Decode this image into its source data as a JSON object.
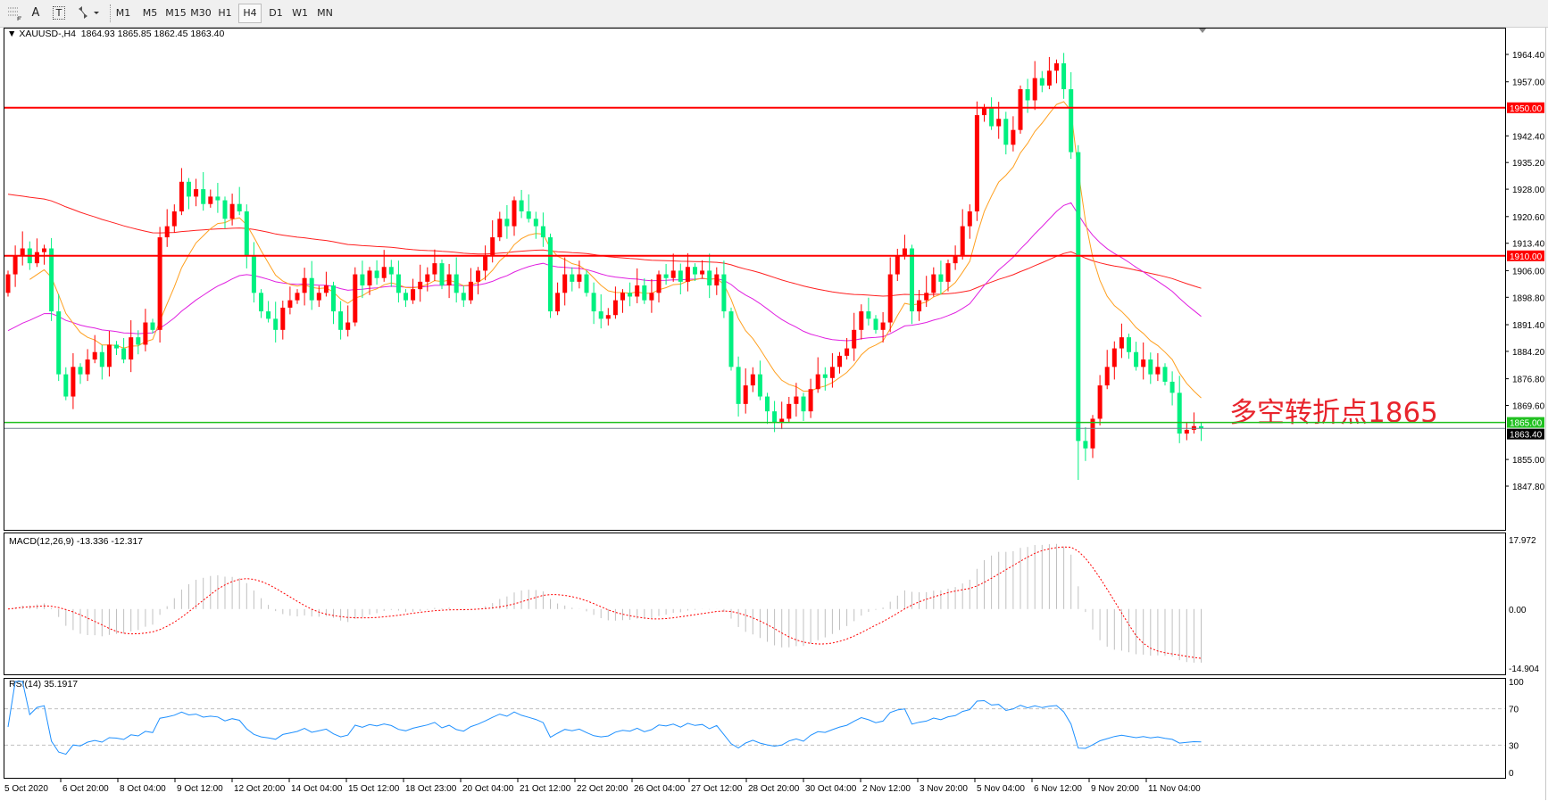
{
  "toolbar": {
    "tools": [
      {
        "name": "period-separator-icon"
      },
      {
        "name": "text-icon",
        "glyph": "A"
      },
      {
        "name": "text-label-icon",
        "glyph": "T"
      },
      {
        "name": "arrows-icon"
      }
    ],
    "timeframes": [
      "M1",
      "M5",
      "M15",
      "M30",
      "H1",
      "H4",
      "D1",
      "W1",
      "MN"
    ],
    "selected_timeframe": "H4"
  },
  "chart_header": {
    "symbol": "XAUUSD-,H4",
    "ohlc": "1864.93 1865.85 1862.45 1863.40"
  },
  "annotation": "多空转折点1865",
  "colors": {
    "bull_candle": "#ff0000",
    "bear_candle": "#00f080",
    "ma_long": "#ff2020",
    "ma_mid": "#e020e0",
    "ma_short": "#ffa020",
    "resistance_line": "#ff0000",
    "support_line": "#20c020",
    "bid_line": "#708090",
    "macd_hist": "#c0c0c0",
    "macd_signal": "#ff0000",
    "rsi": "#1e90ff"
  },
  "chart_data": [
    {
      "type": "candlestick",
      "title": "XAUUSD-,H4",
      "ylim": [
        1847.8,
        1964.4
      ],
      "y_ticks": [
        "1964.40",
        "1957.00",
        "1942.40",
        "1935.20",
        "1928.00",
        "1920.60",
        "1913.40",
        "1906.00",
        "1898.80",
        "1891.40",
        "1884.20",
        "1876.80",
        "1869.60",
        "1855.00",
        "1847.80"
      ],
      "x_ticks": [
        "5 Oct 2020",
        "6 Oct 20:00",
        "8 Oct 04:00",
        "9 Oct 12:00",
        "12 Oct 20:00",
        "14 Oct 04:00",
        "15 Oct 12:00",
        "18 Oct 23:00",
        "20 Oct 04:00",
        "21 Oct 12:00",
        "22 Oct 20:00",
        "26 Oct 04:00",
        "27 Oct 12:00",
        "28 Oct 20:00",
        "30 Oct 04:00",
        "2 Nov 12:00",
        "3 Nov 20:00",
        "5 Nov 04:00",
        "6 Nov 12:00",
        "9 Nov 20:00",
        "11 Nov 04:00"
      ],
      "closes": [
        1905,
        1910,
        1912,
        1908,
        1911,
        1912,
        1895,
        1878,
        1872,
        1880,
        1878,
        1882,
        1884,
        1880,
        1886,
        1885,
        1882,
        1888,
        1886,
        1892,
        1890,
        1915,
        1918,
        1922,
        1930,
        1926,
        1928,
        1924,
        1926,
        1925,
        1920,
        1924,
        1922,
        1910,
        1900,
        1895,
        1893,
        1890,
        1896,
        1898,
        1900,
        1904,
        1898,
        1900,
        1902,
        1895,
        1890,
        1892,
        1905,
        1902,
        1906,
        1904,
        1907,
        1905,
        1900,
        1898,
        1901,
        1903,
        1905,
        1908,
        1902,
        1905,
        1900,
        1898,
        1903,
        1906,
        1910,
        1915,
        1920,
        1918,
        1925,
        1922,
        1920,
        1918,
        1915,
        1895,
        1900,
        1905,
        1903,
        1905,
        1900,
        1895,
        1893,
        1894,
        1898,
        1900,
        1899,
        1902,
        1898,
        1900,
        1905,
        1904,
        1906,
        1903,
        1907,
        1905,
        1906,
        1902,
        1905,
        1895,
        1880,
        1870,
        1875,
        1878,
        1872,
        1868,
        1865,
        1866,
        1870,
        1872,
        1868,
        1874,
        1878,
        1877,
        1880,
        1883,
        1885,
        1890,
        1895,
        1893,
        1890,
        1892,
        1905,
        1910,
        1912,
        1895,
        1898,
        1900,
        1905,
        1903,
        1908,
        1910,
        1918,
        1922,
        1948,
        1950,
        1945,
        1947,
        1940,
        1944,
        1955,
        1952,
        1958,
        1956,
        1960,
        1962,
        1955,
        1938,
        1860,
        1858,
        1866,
        1875,
        1880,
        1885,
        1888,
        1884,
        1880,
        1882,
        1878,
        1880,
        1876,
        1873,
        1862,
        1863,
        1864,
        1863.4
      ],
      "horizontal_lines": [
        {
          "price": 1950.0,
          "label": "1950.00",
          "color": "#ff0000"
        },
        {
          "price": 1910.0,
          "label": "1910.00",
          "color": "#ff0000"
        },
        {
          "price": 1865.0,
          "label": "1865.00",
          "color": "#20c020"
        }
      ],
      "bid": {
        "price": 1863.4,
        "label": "1863.40"
      }
    },
    {
      "type": "line",
      "title": "MACD(12,26,9) -13.336 -12.317",
      "ylim": [
        -14.904,
        17.972
      ],
      "y_ticks": [
        "17.972",
        "0.00",
        "-14.904"
      ]
    },
    {
      "type": "line",
      "title": "RSI(14) 35.1917",
      "ylim": [
        0,
        100
      ],
      "y_ticks": [
        "100",
        "70",
        "30",
        "0"
      ],
      "levels": [
        70,
        30
      ]
    }
  ]
}
